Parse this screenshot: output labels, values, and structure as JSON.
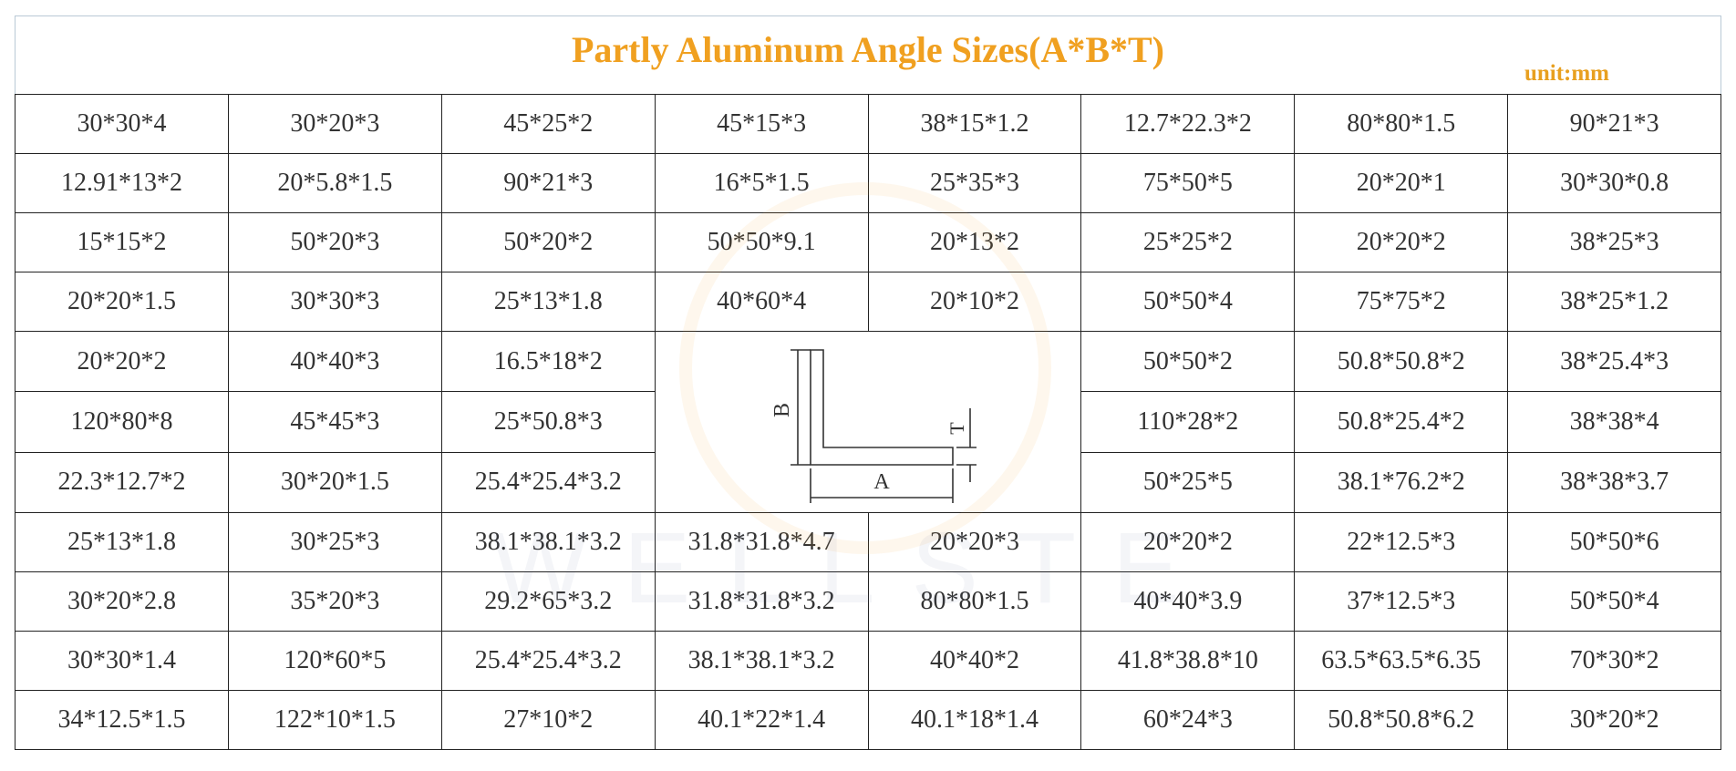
{
  "header": {
    "title": "Partly Aluminum Angle Sizes(A*B*T)",
    "unit": "unit:mm"
  },
  "watermark": "WELLSTE",
  "diagram": {
    "labels": [
      "A",
      "B",
      "T"
    ]
  },
  "table": {
    "rows": [
      [
        "30*30*4",
        "30*20*3",
        "45*25*2",
        "45*15*3",
        "38*15*1.2",
        "12.7*22.3*2",
        "80*80*1.5",
        "90*21*3"
      ],
      [
        "12.91*13*2",
        "20*5.8*1.5",
        "90*21*3",
        "16*5*1.5",
        "25*35*3",
        "75*50*5",
        "20*20*1",
        "30*30*0.8"
      ],
      [
        "15*15*2",
        "50*20*3",
        "50*20*2",
        "50*50*9.1",
        "20*13*2",
        "25*25*2",
        "20*20*2",
        "38*25*3"
      ],
      [
        "20*20*1.5",
        "30*30*3",
        "25*13*1.8",
        "40*60*4",
        "20*10*2",
        "50*50*4",
        "75*75*2",
        "38*25*1.2"
      ],
      [
        "20*20*2",
        "40*40*3",
        "16.5*18*2",
        "50*50*2",
        "50.8*50.8*2",
        "38*25.4*3"
      ],
      [
        "120*80*8",
        "45*45*3",
        "25*50.8*3",
        "110*28*2",
        "50.8*25.4*2",
        "38*38*4"
      ],
      [
        "22.3*12.7*2",
        "30*20*1.5",
        "25.4*25.4*3.2",
        "50*25*5",
        "38.1*76.2*2",
        "38*38*3.7"
      ],
      [
        "25*13*1.8",
        "30*25*3",
        "38.1*38.1*3.2",
        "31.8*31.8*4.7",
        "20*20*3",
        "20*20*2",
        "22*12.5*3",
        "50*50*6"
      ],
      [
        "30*20*2.8",
        "35*20*3",
        "29.2*65*3.2",
        "31.8*31.8*3.2",
        "80*80*1.5",
        "40*40*3.9",
        "37*12.5*3",
        "50*50*4"
      ],
      [
        "30*30*1.4",
        "120*60*5",
        "25.4*25.4*3.2",
        "38.1*38.1*3.2",
        "40*40*2",
        "41.8*38.8*10",
        "63.5*63.5*6.35",
        "70*30*2"
      ],
      [
        "34*12.5*1.5",
        "122*10*1.5",
        "27*10*2",
        "40.1*22*1.4",
        "40.1*18*1.4",
        "60*24*3",
        "50.8*50.8*6.2",
        "30*20*2"
      ]
    ]
  }
}
